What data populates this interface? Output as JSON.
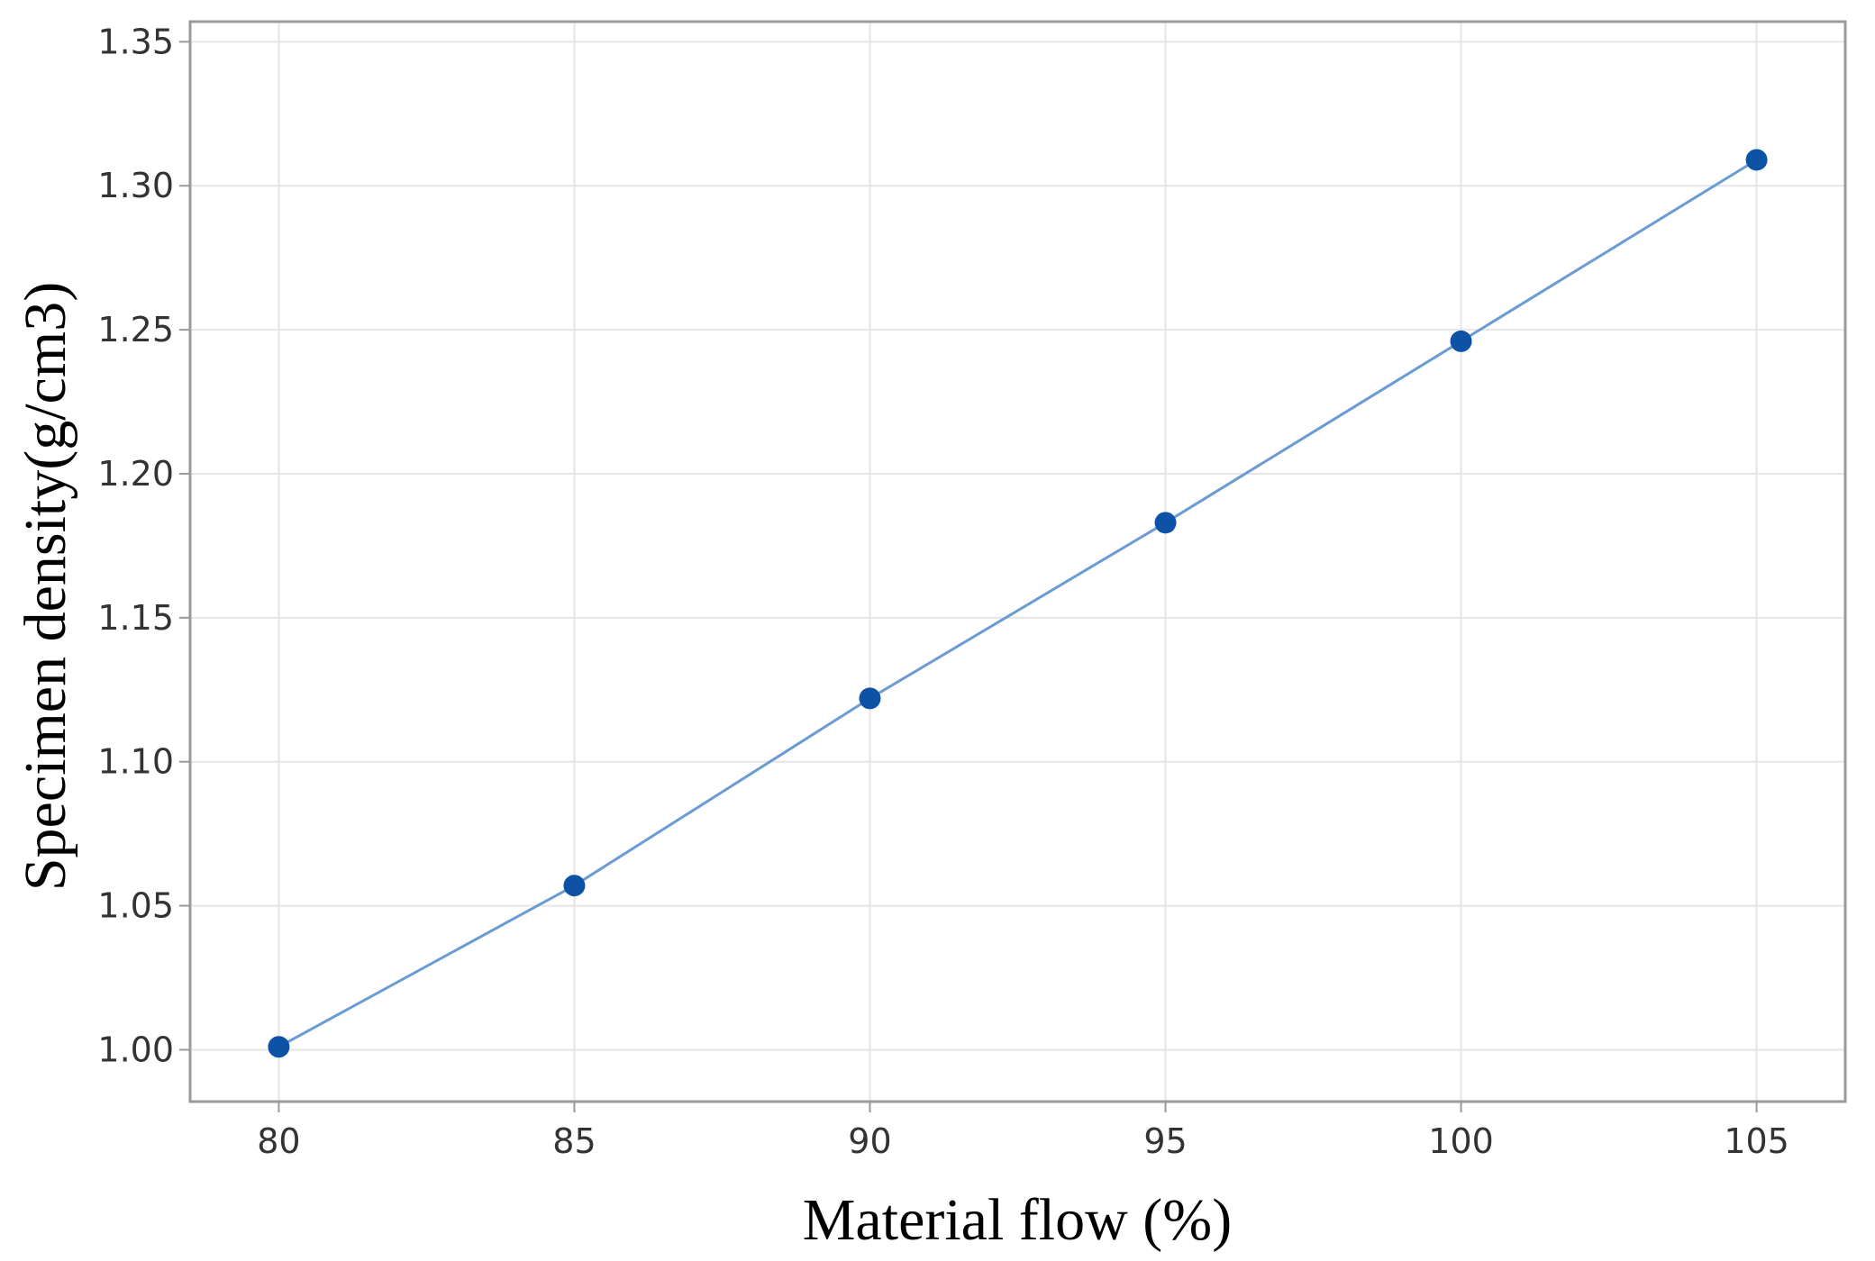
{
  "colors": {
    "line": "#6a9bd4",
    "marker": "#0e52a6",
    "grid": "#e6e6e6",
    "frame": "#9a9a9a",
    "background": "#ffffff"
  },
  "chart_data": {
    "type": "line",
    "title": "",
    "xlabel": "Material flow (%)",
    "ylabel": "Specimen density(g/cm3)",
    "xlim": [
      78.5,
      106.5
    ],
    "ylim": [
      0.982,
      1.357
    ],
    "x_ticks": [
      80,
      85,
      90,
      95,
      100,
      105
    ],
    "x_tick_labels": [
      "80",
      "85",
      "90",
      "95",
      "100",
      "105"
    ],
    "y_ticks": [
      1.0,
      1.05,
      1.1,
      1.15,
      1.2,
      1.25,
      1.3,
      1.35
    ],
    "y_tick_labels": [
      "1.00",
      "1.05",
      "1.10",
      "1.15",
      "1.20",
      "1.25",
      "1.30",
      "1.35"
    ],
    "grid": true,
    "legend": "none",
    "series": [
      {
        "x": [
          80,
          85,
          90,
          95,
          100,
          105
        ],
        "values": [
          1.001,
          1.057,
          1.122,
          1.183,
          1.246,
          1.309
        ],
        "markers": true
      }
    ]
  }
}
